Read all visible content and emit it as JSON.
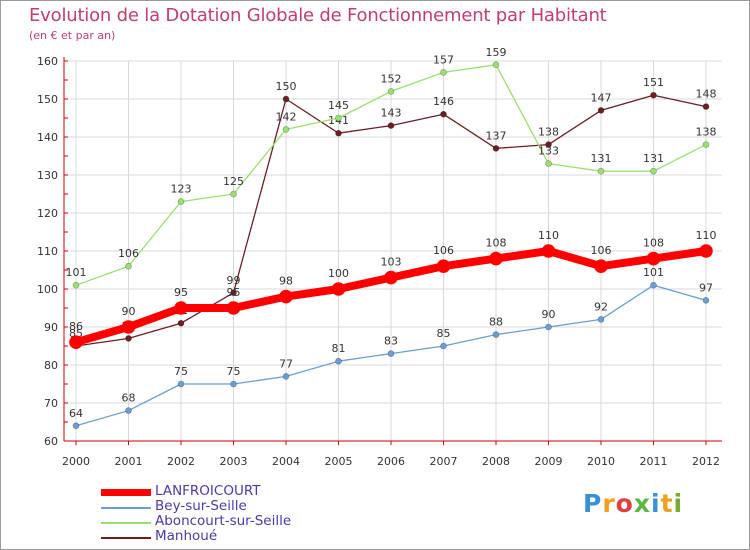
{
  "chart_data": {
    "type": "line",
    "title": "Evolution de la Dotation Globale de Fonctionnement par Habitant",
    "subtitle": "(en € et par an)",
    "x": [
      "2000",
      "2001",
      "2002",
      "2003",
      "2004",
      "2005",
      "2006",
      "2007",
      "2008",
      "2009",
      "2010",
      "2011",
      "2012"
    ],
    "ylim": [
      60,
      160
    ],
    "yticks": [
      60,
      70,
      80,
      90,
      100,
      110,
      120,
      130,
      140,
      150,
      160
    ],
    "grid": true,
    "series": [
      {
        "name": "Manhoué",
        "color": "#6b1f24",
        "values": [
          85,
          87,
          91,
          99,
          150,
          141,
          143,
          146,
          137,
          138,
          147,
          151,
          148
        ]
      },
      {
        "name": "Aboncourt-sur-Seille",
        "color": "#99e070",
        "values": [
          101,
          106,
          123,
          125,
          142,
          145,
          152,
          157,
          159,
          133,
          131,
          131,
          138
        ]
      },
      {
        "name": "Bey-sur-Seille",
        "color": "#6a9ed4",
        "values": [
          64,
          68,
          75,
          75,
          77,
          81,
          83,
          85,
          88,
          90,
          92,
          101,
          97
        ]
      },
      {
        "name": "LANFROICOURT",
        "color": "#ff0000",
        "values": [
          86,
          90,
          95,
          95,
          98,
          100,
          103,
          106,
          108,
          110,
          106,
          108,
          110
        ]
      }
    ]
  },
  "legend": [
    {
      "label": "LANFROICOURT",
      "color": "#ff0000",
      "thick": true
    },
    {
      "label": "Bey-sur-Seille",
      "color": "#6a9ed4",
      "thick": false
    },
    {
      "label": "Aboncourt-sur-Seille",
      "color": "#99e070",
      "thick": false
    },
    {
      "label": "Manhoué",
      "color": "#6b1f24",
      "thick": false
    }
  ],
  "logo": {
    "letters": [
      "P",
      "r",
      "o",
      "x",
      "i",
      "t",
      "i"
    ],
    "colors": [
      "#3a8fd8",
      "#f0a020",
      "#e04040",
      "#5ab840",
      "#3a8fd8",
      "#f0a020",
      "#7aa830"
    ]
  }
}
